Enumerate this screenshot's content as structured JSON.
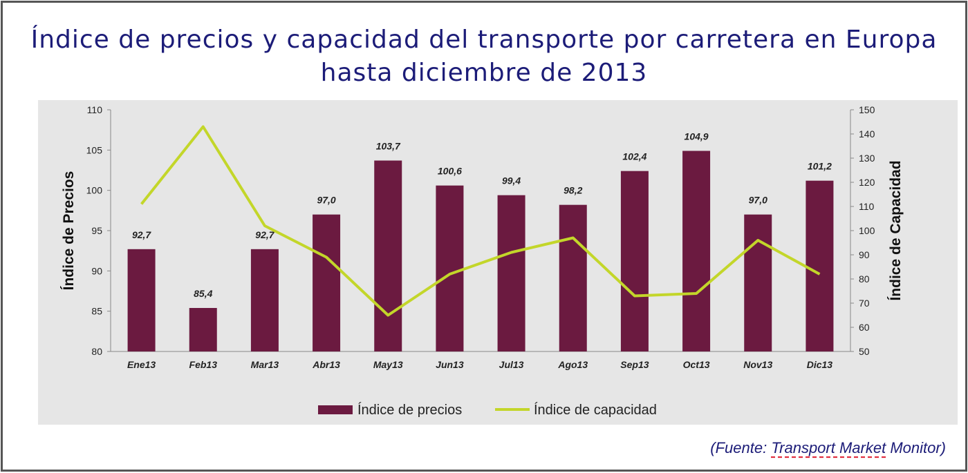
{
  "title_line1": "Índice de precios y capacidad del transporte por carretera en Europa",
  "title_line2": "hasta diciembre de 2013",
  "source": {
    "prefix": "(Fuente: ",
    "underlined": "Transport Market",
    "suffix": " Monitor)"
  },
  "chart_data": {
    "type": "bar",
    "categories": [
      "Ene13",
      "Feb13",
      "Mar13",
      "Abr13",
      "May13",
      "Jun13",
      "Jul13",
      "Ago13",
      "Sep13",
      "Oct13",
      "Nov13",
      "Dic13"
    ],
    "series": [
      {
        "name": "Índice de precios",
        "type": "bar",
        "axis": "left",
        "color": "#6b1a40",
        "values": [
          92.7,
          85.4,
          92.7,
          97.0,
          103.7,
          100.6,
          99.4,
          98.2,
          102.4,
          104.9,
          97.0,
          101.2
        ],
        "labels": [
          "92,7",
          "85,4",
          "92,7",
          "97,0",
          "103,7",
          "100,6",
          "99,4",
          "98,2",
          "102,4",
          "104,9",
          "97,0",
          "101,2"
        ]
      },
      {
        "name": "Índice de capacidad",
        "type": "line",
        "axis": "right",
        "color": "#c3d62a",
        "values": [
          111,
          143,
          102,
          89,
          65,
          82,
          91,
          97,
          73,
          74,
          96,
          82
        ]
      }
    ],
    "ylabel": "Índice de Precios",
    "y2label": "Índice de Capacidad",
    "ylim": [
      80,
      110
    ],
    "yticks": [
      80,
      85,
      90,
      95,
      100,
      105,
      110
    ],
    "y2lim": [
      50,
      150
    ],
    "y2ticks": [
      50,
      60,
      70,
      80,
      90,
      100,
      110,
      120,
      130,
      140,
      150
    ],
    "legend": "bottom",
    "grid": false
  }
}
